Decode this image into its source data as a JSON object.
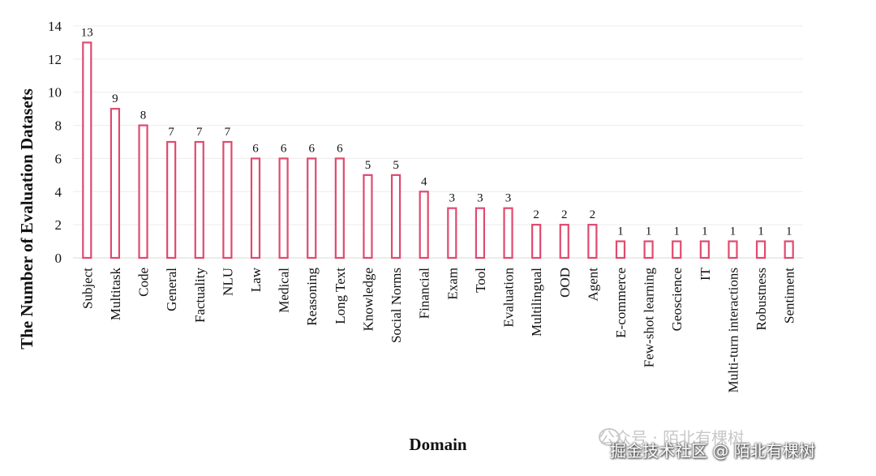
{
  "chart_data": {
    "type": "bar",
    "xlabel": "Domain",
    "ylabel": "The Number of Evaluation Datasets",
    "ylim": [
      0,
      14
    ],
    "yticks": [
      0,
      2,
      4,
      6,
      8,
      10,
      12,
      14
    ],
    "grid": true,
    "categories": [
      "Subject",
      "Multitask",
      "Code",
      "General",
      "Factuality",
      "NLU",
      "Law",
      "Medical",
      "Reasoning",
      "Long Text",
      "Knowledge",
      "Social Norms",
      "Financial",
      "Exam",
      "Tool",
      "Evaluation",
      "Multilingual",
      "OOD",
      "Agent",
      "E-commerce",
      "Few-shot learning",
      "Geoscience",
      "IT",
      "Multi-turn interactions",
      "Robustness",
      "Sentiment"
    ],
    "values": [
      13,
      9,
      8,
      7,
      7,
      7,
      6,
      6,
      6,
      6,
      5,
      5,
      4,
      3,
      3,
      3,
      2,
      2,
      2,
      1,
      1,
      1,
      1,
      1,
      1,
      1
    ],
    "bar_color": "#e04a6e"
  },
  "watermark": {
    "line1": "公众号 · 陌北有棵树",
    "line2": "掘金技术社区 @ 陌北有棵树"
  }
}
